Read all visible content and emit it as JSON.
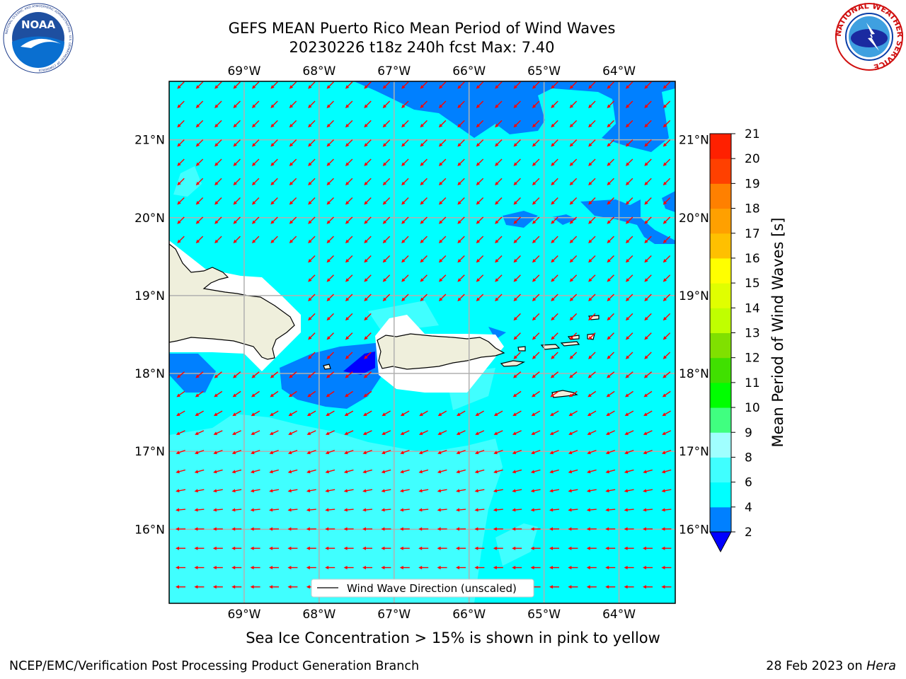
{
  "header": {
    "title_line1": "GEFS MEAN Puerto Rico Mean Period of Wind Waves",
    "title_line2": "20230226 t18z 240h fcst   Max: 7.40"
  },
  "logos": {
    "left": {
      "icon": "noaa-logo",
      "text": "NOAA",
      "ring_text": "NATIONAL OCEANIC AND ATMOSPHERIC ADMINISTRATION · U.S. DEPARTMENT OF COMMERCE"
    },
    "right": {
      "icon": "nws-logo",
      "ring_text": "NATIONAL WEATHER SERVICE"
    }
  },
  "map": {
    "lon_range": [
      -70,
      -63.25
    ],
    "lat_range": [
      15.05,
      21.75
    ],
    "lon_ticks": [
      {
        "value": -69,
        "label": "69°W"
      },
      {
        "value": -68,
        "label": "68°W"
      },
      {
        "value": -67,
        "label": "67°W"
      },
      {
        "value": -66,
        "label": "66°W"
      },
      {
        "value": -65,
        "label": "65°W"
      },
      {
        "value": -64,
        "label": "64°W"
      }
    ],
    "lat_ticks": [
      {
        "value": 21,
        "label": "21°N"
      },
      {
        "value": 20,
        "label": "20°N"
      },
      {
        "value": 19,
        "label": "19°N"
      },
      {
        "value": 18,
        "label": "18°N"
      },
      {
        "value": 17,
        "label": "17°N"
      },
      {
        "value": 16,
        "label": "16°N"
      }
    ],
    "gridlines": true,
    "ocean_color": "#00ffff",
    "land_color": "#efefdc",
    "arrow_color": "#ff0000",
    "legend_label": "Wind Wave Direction (unscaled)"
  },
  "colorbar": {
    "label": "Mean Period of Wind Waves [s]",
    "levels": [
      2,
      4,
      6,
      8,
      9,
      10,
      11,
      12,
      13,
      14,
      15,
      16,
      17,
      18,
      19,
      20,
      21
    ],
    "tick_labels": [
      "2",
      "4",
      "6",
      "8",
      "9",
      "10",
      "11",
      "12",
      "13",
      "14",
      "15",
      "16",
      "17",
      "18",
      "19",
      "20",
      "21"
    ],
    "colors": [
      "#0080ff",
      "#00ffff",
      "#40ffff",
      "#a0ffff",
      "#40ff80",
      "#00ff00",
      "#40e000",
      "#80e000",
      "#c0ff00",
      "#e0ff00",
      "#ffff00",
      "#ffc000",
      "#ffa000",
      "#ff8000",
      "#ff4000",
      "#ff2000",
      "#ff0000"
    ],
    "under_color": "#0000ff"
  },
  "caption": "Sea Ice Concentration > 15% is shown in pink to yellow",
  "footer": {
    "left": "NCEP/EMC/Verification Post Processing Product Generation Branch",
    "right_prefix": "28 Feb 2023 on ",
    "right_italic": "Hera"
  }
}
